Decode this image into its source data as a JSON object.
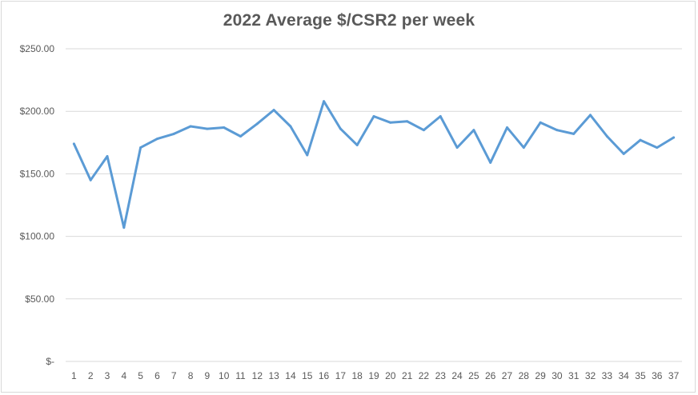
{
  "chart_data": {
    "type": "line",
    "title": "2022 Average $/CSR2 per week",
    "xlabel": "",
    "ylabel": "",
    "x": [
      1,
      2,
      3,
      4,
      5,
      6,
      7,
      8,
      9,
      10,
      11,
      12,
      13,
      14,
      15,
      16,
      17,
      18,
      19,
      20,
      21,
      22,
      23,
      24,
      25,
      26,
      27,
      28,
      29,
      30,
      31,
      32,
      33,
      34,
      35,
      36,
      37
    ],
    "x_tick_labels": [
      "1",
      "2",
      "3",
      "4",
      "5",
      "6",
      "7",
      "8",
      "9",
      "10",
      "11",
      "12",
      "13",
      "14",
      "15",
      "16",
      "17",
      "18",
      "19",
      "20",
      "21",
      "22",
      "23",
      "24",
      "25",
      "26",
      "27",
      "28",
      "29",
      "30",
      "31",
      "32",
      "33",
      "34",
      "35",
      "36",
      "37"
    ],
    "ylim": [
      0,
      250
    ],
    "y_ticks": [
      0,
      50,
      100,
      150,
      200,
      250
    ],
    "y_tick_labels": [
      "$-",
      "$50.00",
      "$100.00",
      "$150.00",
      "$200.00",
      "$250.00"
    ],
    "grid": true,
    "legend": "none",
    "series": [
      {
        "color": "#5b9bd5",
        "values": [
          174,
          145,
          164,
          107,
          171,
          178,
          182,
          188,
          186,
          187,
          180,
          190,
          201,
          188,
          165,
          208,
          186,
          173,
          196,
          191,
          192,
          185,
          196,
          171,
          185,
          159,
          187,
          171,
          191,
          185,
          182,
          197,
          180,
          166,
          177,
          171,
          179
        ]
      }
    ]
  }
}
